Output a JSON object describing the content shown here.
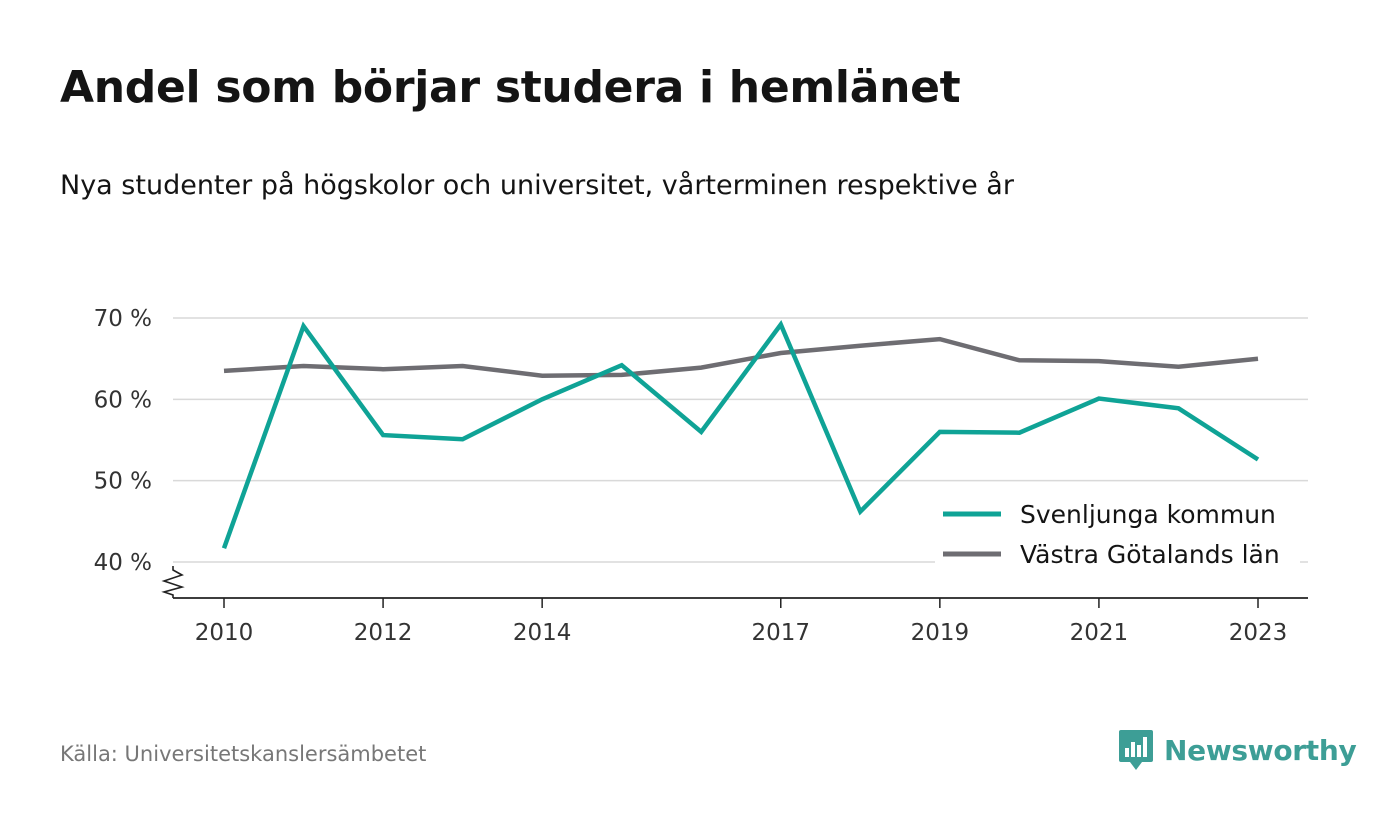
{
  "title": "Andel som börjar studera i hemlänet",
  "subtitle": "Nya studenter på högskolor och universitet, vårterminen respektive år",
  "source": "Källa: Universitetskanslersämbetet",
  "brand": {
    "name": "Newsworthy",
    "icon": "newsworthy-logo-icon",
    "color": "#3d9e96"
  },
  "chart_data": {
    "type": "line",
    "x": [
      2010,
      2011,
      2012,
      2013,
      2014,
      2015,
      2016,
      2017,
      2018,
      2019,
      2020,
      2021,
      2022,
      2023
    ],
    "xticks": [
      2010,
      2012,
      2014,
      2017,
      2019,
      2021,
      2023
    ],
    "yticks": [
      40,
      50,
      60,
      70
    ],
    "ytick_labels": [
      "40 %",
      "50 %",
      "60 %",
      "70 %"
    ],
    "ylim": [
      36,
      70
    ],
    "y_axis_break": true,
    "grid": "horizontal",
    "legend_position": "bottom-right",
    "series": [
      {
        "name": "Svenljunga kommun",
        "color": "#0fa396",
        "values": [
          41.7,
          69.0,
          55.6,
          55.1,
          60.0,
          64.2,
          56.0,
          69.2,
          46.2,
          56.0,
          55.9,
          60.1,
          58.9,
          52.6
        ]
      },
      {
        "name": "Västra Götalands län",
        "color": "#6e6d72",
        "values": [
          63.5,
          64.1,
          63.7,
          64.1,
          62.9,
          63.0,
          63.9,
          65.7,
          66.6,
          67.4,
          64.8,
          64.7,
          64.0,
          65.0
        ]
      }
    ]
  }
}
